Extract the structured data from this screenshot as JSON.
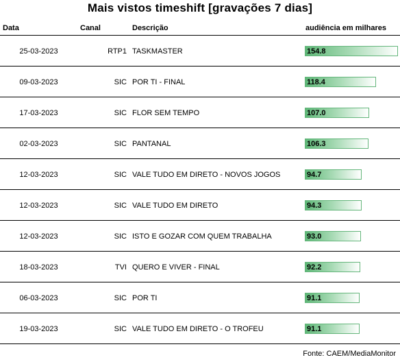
{
  "title": "Mais vistos timeshift [gravações 7 dias]",
  "headers": {
    "data": "Data",
    "canal": "Canal",
    "descricao": "Descrição",
    "audiencia": "audiência em milhares"
  },
  "chart_data": {
    "type": "bar",
    "orientation": "horizontal",
    "title": "Mais vistos timeshift [gravações 7 dias]",
    "value_label": "audiência em milhares",
    "value_max": 154.8,
    "rows": [
      {
        "data": "25-03-2023",
        "canal": "RTP1",
        "descricao": "TASKMASTER",
        "value": 154.8,
        "value_text": "154.8"
      },
      {
        "data": "09-03-2023",
        "canal": "SIC",
        "descricao": "POR TI - FINAL",
        "value": 118.4,
        "value_text": "118.4"
      },
      {
        "data": "17-03-2023",
        "canal": "SIC",
        "descricao": "FLOR SEM TEMPO",
        "value": 107.0,
        "value_text": "107.0"
      },
      {
        "data": "02-03-2023",
        "canal": "SIC",
        "descricao": "PANTANAL",
        "value": 106.3,
        "value_text": "106.3"
      },
      {
        "data": "12-03-2023",
        "canal": "SIC",
        "descricao": "VALE TUDO EM DIRETO - NOVOS JOGOS",
        "value": 94.7,
        "value_text": "94.7"
      },
      {
        "data": "12-03-2023",
        "canal": "SIC",
        "descricao": "VALE TUDO EM DIRETO",
        "value": 94.3,
        "value_text": "94.3"
      },
      {
        "data": "12-03-2023",
        "canal": "SIC",
        "descricao": "ISTO E GOZAR COM QUEM TRABALHA",
        "value": 93.0,
        "value_text": "93.0"
      },
      {
        "data": "18-03-2023",
        "canal": "TVI",
        "descricao": "QUERO E VIVER - FINAL",
        "value": 92.2,
        "value_text": "92.2"
      },
      {
        "data": "06-03-2023",
        "canal": "SIC",
        "descricao": "POR TI",
        "value": 91.1,
        "value_text": "91.1"
      },
      {
        "data": "19-03-2023",
        "canal": "SIC",
        "descricao": "VALE TUDO EM DIRETO - O TROFEU",
        "value": 91.1,
        "value_text": "91.1"
      }
    ]
  },
  "colors": {
    "bar_start": "#5fb878",
    "bar_end": "#ffffff",
    "bar_border": "#63b57a"
  },
  "source": "Fonte: CAEM/MediaMonitor"
}
